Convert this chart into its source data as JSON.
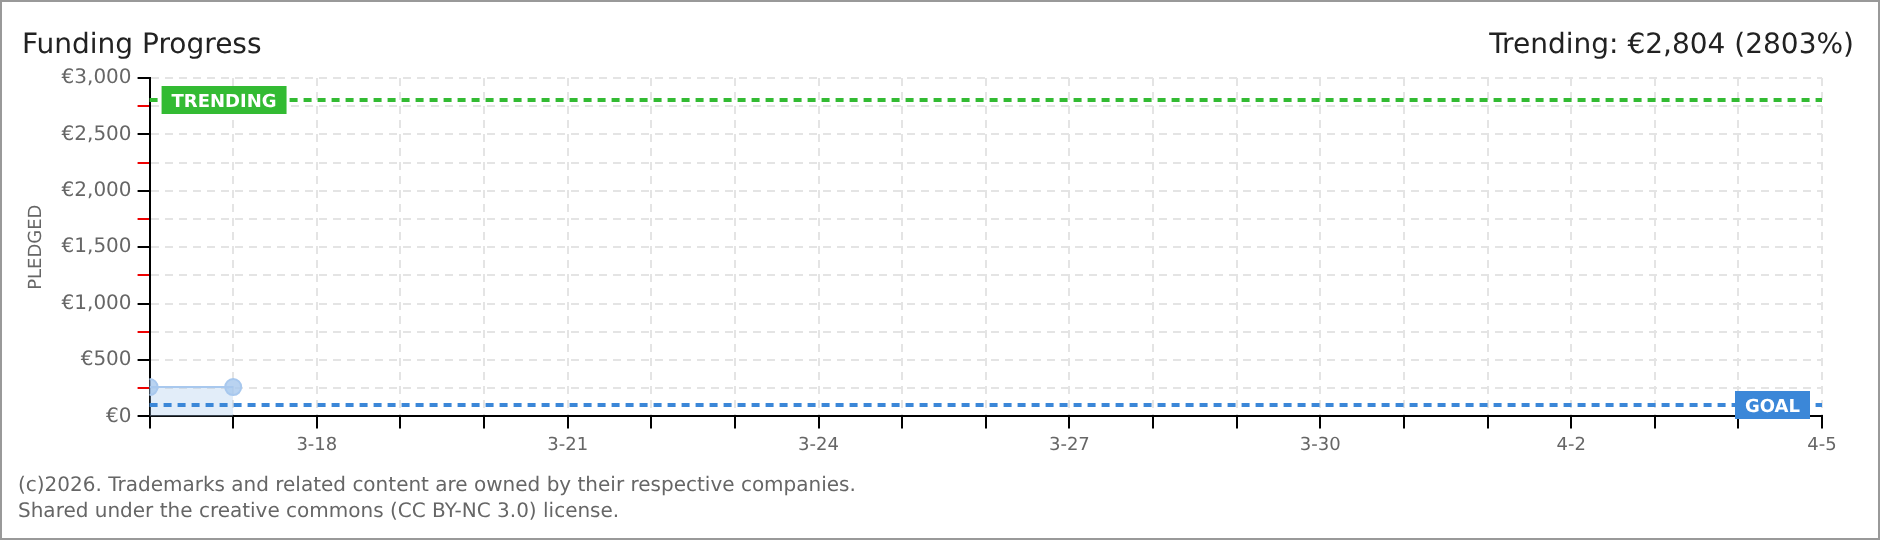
{
  "chart_data": {
    "type": "area",
    "title": "Funding Progress",
    "subtitle": "Trending: €2,804 (2803%)",
    "ylabel": "PLEDGED",
    "x": [
      "--03-16",
      "--03-17"
    ],
    "series": [
      {
        "color": "#a8c8ee",
        "values": [
          260,
          260
        ]
      }
    ],
    "marker": "circle",
    "grid": true,
    "xlim": [
      "--03-16",
      "--04-05"
    ],
    "xticks": [
      {
        "value": "--03-16",
        "label": null
      },
      {
        "value": "--03-17",
        "label": null
      },
      {
        "value": "--03-18",
        "label": "3-18"
      },
      {
        "value": "--03-19",
        "label": null
      },
      {
        "value": "--03-20",
        "label": null
      },
      {
        "value": "--03-21",
        "label": "3-21"
      },
      {
        "value": "--03-22",
        "label": null
      },
      {
        "value": "--03-23",
        "label": null
      },
      {
        "value": "--03-24",
        "label": "3-24"
      },
      {
        "value": "--03-25",
        "label": null
      },
      {
        "value": "--03-26",
        "label": null
      },
      {
        "value": "--03-27",
        "label": "3-27"
      },
      {
        "value": "--03-28",
        "label": null
      },
      {
        "value": "--03-29",
        "label": null
      },
      {
        "value": "--03-30",
        "label": "3-30"
      },
      {
        "value": "--03-31",
        "label": null
      },
      {
        "value": "--04-01",
        "label": null
      },
      {
        "value": "--04-02",
        "label": "4-2"
      },
      {
        "value": "--04-03",
        "label": null
      },
      {
        "value": "--04-04",
        "label": null
      },
      {
        "value": "--04-05",
        "label": "4-5"
      }
    ],
    "ylim": [
      0,
      3000
    ],
    "yticks": [
      {
        "value": 0,
        "label": "€0"
      },
      {
        "value": 250,
        "label": null
      },
      {
        "value": 500,
        "label": "€500"
      },
      {
        "value": 750,
        "label": null
      },
      {
        "value": 1000,
        "label": "€1,000"
      },
      {
        "value": 1250,
        "label": null
      },
      {
        "value": 1500,
        "label": "€1,500"
      },
      {
        "value": 1750,
        "label": null
      },
      {
        "value": 2000,
        "label": "€2,000"
      },
      {
        "value": 2250,
        "label": null
      },
      {
        "value": 2500,
        "label": "€2,500"
      },
      {
        "value": 2750,
        "label": null
      },
      {
        "value": 3000,
        "label": "€3,000"
      }
    ],
    "ref_lines": [
      {
        "axis": "y",
        "value": 2804,
        "label": "TRENDING",
        "color": "#33bb33",
        "line_style": "dashed"
      },
      {
        "axis": "y",
        "value": 100,
        "label": "GOAL",
        "color": "#3b87d8",
        "line_style": "dashed"
      }
    ],
    "annotations": [
      "(c)2026. Trademarks and related content are owned by their respective companies.",
      "Shared under the creative commons (CC BY-NC 3.0) license."
    ]
  }
}
